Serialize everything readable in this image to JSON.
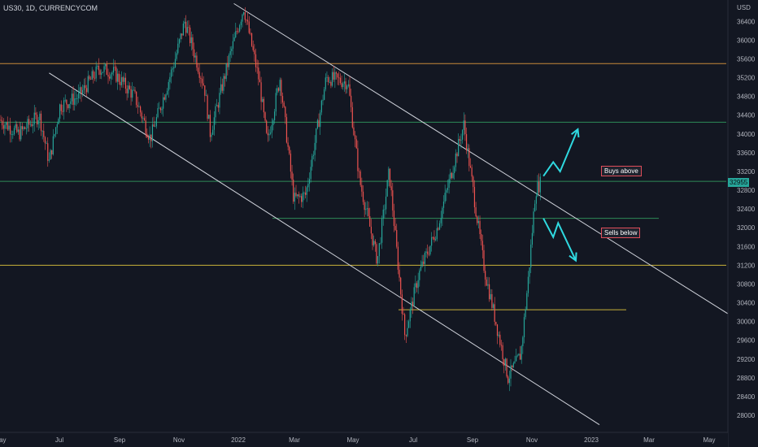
{
  "symbol_label": "US30, 1D, CURRENCYCOM",
  "currency_label": "USD",
  "colors": {
    "background": "#131722",
    "up_candle": "#26a69a",
    "down_candle": "#ef5350",
    "channel_line": "#d1d4dc",
    "resistance_orange": "#c7893a",
    "level_green": "#2e8b57",
    "level_yellow": "#c9b33a",
    "arrow_cyan": "#2fd9e0",
    "label_border": "#e04e5a"
  },
  "annotations": {
    "buys_above": "Buys above",
    "sells_below": "Sells below"
  },
  "current_price_tag": "32955",
  "chart_data": {
    "type": "candlestick",
    "yticks": [
      28000,
      28400,
      28800,
      29200,
      29600,
      30000,
      30400,
      30800,
      31200,
      31600,
      32000,
      32400,
      32800,
      33200,
      33600,
      34000,
      34400,
      34800,
      35200,
      35600,
      36000,
      36400
    ],
    "ylim": [
      27800,
      36800
    ],
    "xticks": [
      "May",
      "Jul",
      "Sep",
      "Nov",
      "2022",
      "Mar",
      "May",
      "Jul",
      "Sep",
      "Nov",
      "2023",
      "Mar",
      "May"
    ],
    "levels": [
      {
        "price": 35500,
        "color": "resistance_orange",
        "full_width": true
      },
      {
        "price": 34250,
        "color": "level_green",
        "full_width": true
      },
      {
        "price": 32990,
        "color": "level_green",
        "full_width": true
      },
      {
        "price": 32200,
        "color": "level_green",
        "full_width": false
      },
      {
        "price": 31200,
        "color": "level_yellow",
        "full_width": true
      },
      {
        "price": 30250,
        "color": "level_yellow",
        "full_width": false
      }
    ],
    "channel": {
      "upper": [
        [
          "2021-12-25",
          36780
        ],
        [
          "2023-06-01",
          29900
        ]
      ],
      "lower": [
        [
          "2021-06-20",
          35300
        ],
        [
          "2023-01-01",
          27800
        ]
      ]
    },
    "price_path": [
      [
        "2021-05-01",
        34300
      ],
      [
        "2021-05-20",
        34000
      ],
      [
        "2021-06-10",
        34400
      ],
      [
        "2021-06-20",
        33400
      ],
      [
        "2021-07-01",
        34600
      ],
      [
        "2021-07-20",
        34800
      ],
      [
        "2021-08-10",
        35400
      ],
      [
        "2021-08-25",
        35300
      ],
      [
        "2021-09-15",
        34800
      ],
      [
        "2021-10-01",
        33900
      ],
      [
        "2021-10-25",
        35500
      ],
      [
        "2021-11-05",
        36400
      ],
      [
        "2021-11-25",
        35000
      ],
      [
        "2021-12-01",
        34000
      ],
      [
        "2021-12-20",
        35600
      ],
      [
        "2022-01-04",
        36700
      ],
      [
        "2022-01-20",
        35100
      ],
      [
        "2022-01-28",
        33800
      ],
      [
        "2022-02-10",
        35200
      ],
      [
        "2022-02-24",
        32600
      ],
      [
        "2022-03-08",
        32700
      ],
      [
        "2022-03-29",
        35200
      ],
      [
        "2022-04-20",
        35100
      ],
      [
        "2022-05-02",
        33000
      ],
      [
        "2022-05-20",
        31300
      ],
      [
        "2022-06-01",
        33200
      ],
      [
        "2022-06-17",
        29700
      ],
      [
        "2022-07-01",
        31000
      ],
      [
        "2022-07-20",
        32000
      ],
      [
        "2022-08-16",
        34200
      ],
      [
        "2022-09-06",
        31100
      ],
      [
        "2022-09-30",
        28800
      ],
      [
        "2022-10-13",
        29300
      ],
      [
        "2022-10-21",
        31000
      ],
      [
        "2022-10-28",
        32800
      ],
      [
        "2022-11-02",
        32955
      ]
    ],
    "scenario_arrows": [
      {
        "name": "bullish-scenario",
        "points": [
          [
            "2022-11-05",
            33100
          ],
          [
            "2022-11-15",
            33400
          ],
          [
            "2022-11-22",
            33200
          ],
          [
            "2022-12-10",
            34100
          ]
        ]
      },
      {
        "name": "bearish-scenario",
        "points": [
          [
            "2022-11-05",
            32200
          ],
          [
            "2022-11-15",
            31800
          ],
          [
            "2022-11-20",
            32100
          ],
          [
            "2022-12-08",
            31300
          ]
        ]
      }
    ]
  }
}
